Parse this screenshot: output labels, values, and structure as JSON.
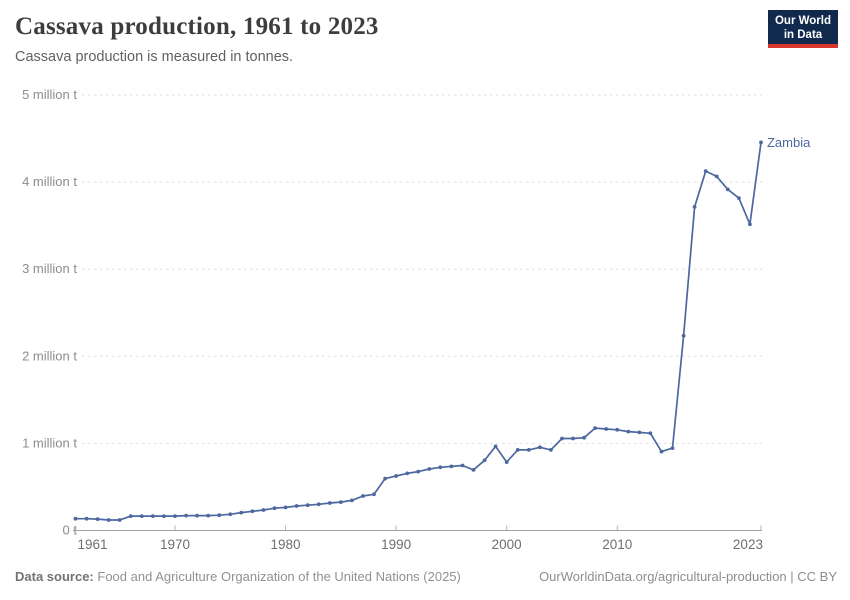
{
  "header": {
    "title": "Cassava production, 1961 to 2023",
    "subtitle": "Cassava production is measured in tonnes."
  },
  "logo": {
    "line1": "Our World",
    "line2": "in Data",
    "bg_color": "#12294e",
    "accent_color": "#d8352c"
  },
  "footer": {
    "source_label": "Data source:",
    "source_text": "Food and Agriculture Organization of the United Nations (2025)",
    "credit": "OurWorldinData.org/agricultural-production | CC BY"
  },
  "chart_data": {
    "type": "line",
    "title": "Cassava production, 1961 to 2023",
    "subtitle": "Cassava production is measured in tonnes.",
    "unit": "million tonnes",
    "xlim": [
      1961,
      2023
    ],
    "ylim": [
      0,
      5
    ],
    "grid": "dashed horizontal",
    "legend_position": "end-of-line-label",
    "line_color": "#4c689f",
    "grid_color": "#dedede",
    "axis_color": "#a2a2a2",
    "y_ticks": [
      {
        "value": 0,
        "label": "0 t"
      },
      {
        "value": 1,
        "label": "1 million t"
      },
      {
        "value": 2,
        "label": "2 million t"
      },
      {
        "value": 3,
        "label": "3 million t"
      },
      {
        "value": 4,
        "label": "4 million t"
      },
      {
        "value": 5,
        "label": "5 million t"
      }
    ],
    "x_ticks": [
      1961,
      1970,
      1980,
      1990,
      2000,
      2010,
      2023
    ],
    "series": [
      {
        "name": "Zambia",
        "color": "#4c689f",
        "years": [
          1961,
          1962,
          1963,
          1964,
          1965,
          1966,
          1967,
          1968,
          1969,
          1970,
          1971,
          1972,
          1973,
          1974,
          1975,
          1976,
          1977,
          1978,
          1979,
          1980,
          1981,
          1982,
          1983,
          1984,
          1985,
          1986,
          1987,
          1988,
          1989,
          1990,
          1991,
          1992,
          1993,
          1994,
          1995,
          1996,
          1997,
          1998,
          1999,
          2000,
          2001,
          2002,
          2003,
          2004,
          2005,
          2006,
          2007,
          2008,
          2009,
          2010,
          2011,
          2012,
          2013,
          2014,
          2015,
          2016,
          2017,
          2018,
          2019,
          2020,
          2021,
          2022,
          2023
        ],
        "values": [
          0.13,
          0.13,
          0.125,
          0.115,
          0.115,
          0.16,
          0.16,
          0.16,
          0.16,
          0.16,
          0.165,
          0.165,
          0.165,
          0.17,
          0.18,
          0.2,
          0.215,
          0.23,
          0.25,
          0.26,
          0.275,
          0.285,
          0.295,
          0.31,
          0.32,
          0.34,
          0.39,
          0.41,
          0.59,
          0.62,
          0.65,
          0.67,
          0.7,
          0.72,
          0.73,
          0.74,
          0.69,
          0.8,
          0.96,
          0.78,
          0.92,
          0.92,
          0.95,
          0.92,
          1.05,
          1.05,
          1.06,
          1.17,
          1.16,
          1.15,
          1.13,
          1.12,
          1.11,
          0.9,
          0.94,
          2.23,
          3.71,
          4.12,
          4.06,
          3.91,
          3.81,
          3.51,
          4.45
        ]
      }
    ]
  }
}
